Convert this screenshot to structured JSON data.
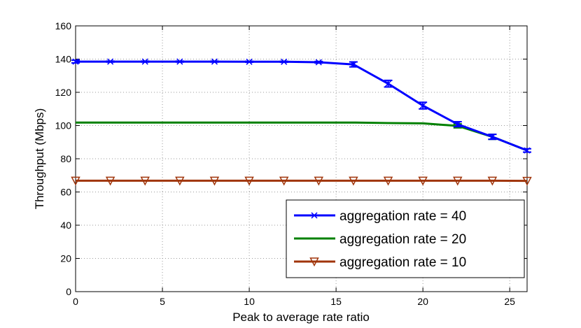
{
  "chart_data": {
    "type": "line",
    "title": "",
    "xlabel": "Peak to average rate ratio",
    "ylabel": "Throughput (Mbps)",
    "xlim": [
      0,
      26
    ],
    "ylim": [
      0,
      160
    ],
    "xticks": [
      0,
      5,
      10,
      15,
      20,
      25
    ],
    "yticks": [
      0,
      20,
      40,
      60,
      80,
      100,
      120,
      140,
      160
    ],
    "xtick_labels": [
      "0",
      "5",
      "10",
      "15",
      "20",
      "25"
    ],
    "ytick_labels": [
      "0",
      "20",
      "40",
      "60",
      "80",
      "100",
      "120",
      "140",
      "160"
    ],
    "grid": true,
    "legend_position": "bottom-right",
    "x": [
      0,
      2,
      4,
      6,
      8,
      10,
      12,
      14,
      16,
      18,
      20,
      22,
      24,
      26
    ],
    "series": [
      {
        "name": "aggregation rate = 40",
        "color": "#0000ff",
        "marker": "x",
        "values": [
          138.5,
          138.5,
          138.5,
          138.5,
          138.5,
          138.4,
          138.4,
          138.1,
          136.8,
          125.2,
          112.0,
          100.8,
          93.2,
          85.0
        ],
        "errors": [
          0.8,
          0.3,
          0.3,
          0.3,
          0.3,
          0.3,
          0.3,
          0.5,
          1.5,
          2.0,
          2.0,
          1.5,
          1.5,
          1.0
        ]
      },
      {
        "name": "aggregation rate = 20",
        "color": "#008000",
        "marker": "none",
        "values": [
          101.8,
          101.8,
          101.8,
          101.8,
          101.8,
          101.8,
          101.8,
          101.8,
          101.8,
          101.5,
          101.3,
          99.8,
          93.2,
          85.0
        ],
        "errors": [
          0,
          0,
          0,
          0,
          0,
          0,
          0,
          0,
          0,
          0,
          0,
          1.2,
          1.5,
          0
        ]
      },
      {
        "name": "aggregation rate = 10",
        "color": "#a0350b",
        "marker": "triangle-down",
        "values": [
          66.8,
          66.8,
          66.8,
          66.8,
          66.8,
          66.8,
          66.8,
          66.8,
          66.8,
          66.8,
          66.8,
          66.8,
          66.8,
          66.7
        ],
        "errors": [
          0,
          0,
          0,
          0,
          0,
          0,
          0,
          0,
          0,
          0,
          0,
          0,
          0,
          0
        ]
      }
    ]
  }
}
